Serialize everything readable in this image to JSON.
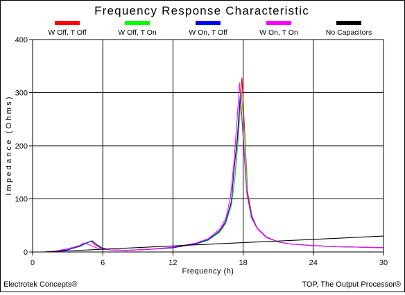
{
  "title": "Frequency Response Characteristic",
  "footer": {
    "left": "Electrotek Concepts®",
    "right": "TOP, The Output Processor®"
  },
  "chart_data": {
    "type": "line",
    "title": "Frequency Response Characteristic",
    "xlabel": "Frequency (h)",
    "ylabel": "Impedance (Ohms)",
    "xlim": [
      0,
      30
    ],
    "ylim": [
      0,
      400
    ],
    "xticks": [
      0,
      6,
      12,
      18,
      24,
      30
    ],
    "yticks": [
      0,
      100,
      200,
      300,
      400
    ],
    "grid": true,
    "legend_position": "top",
    "series": [
      {
        "name": "W Off, T Off",
        "color": "#ff0000",
        "x": [
          1,
          2,
          3,
          4,
          4.5,
          5,
          5.3,
          5.8,
          6.5,
          8,
          10,
          12,
          14,
          15,
          16,
          16.5,
          17,
          17.3,
          17.6,
          17.9,
          18.1,
          18.4,
          18.8,
          19.2,
          20,
          21,
          22,
          24,
          26,
          28,
          30
        ],
        "y": [
          0,
          1,
          4,
          10,
          16,
          20,
          14,
          8,
          4,
          3,
          5,
          8,
          15,
          22,
          38,
          55,
          90,
          140,
          235,
          328,
          240,
          110,
          65,
          45,
          28,
          19,
          15,
          12,
          10,
          9,
          8
        ]
      },
      {
        "name": "W Off, T On",
        "color": "#00ff00",
        "x": [
          1,
          2,
          3,
          4,
          4.6,
          5.1,
          5.4,
          5.9,
          6.5,
          8,
          10,
          12,
          14,
          15,
          16,
          16.5,
          17,
          17.3,
          17.6,
          17.85,
          18.1,
          18.4,
          18.8,
          19.2,
          20,
          21,
          22,
          24,
          26,
          28,
          30
        ],
        "y": [
          0,
          1,
          4,
          10,
          16,
          21,
          15,
          8,
          4,
          3,
          5,
          8,
          15,
          22,
          37,
          53,
          88,
          138,
          220,
          300,
          225,
          105,
          63,
          44,
          28,
          19,
          15,
          12,
          10,
          9,
          8
        ]
      },
      {
        "name": "W On, T Off",
        "color": "#0000ff",
        "x": [
          1,
          2,
          3,
          4,
          4.6,
          5.1,
          5.4,
          5.9,
          6.5,
          8,
          10,
          12,
          14,
          15,
          16,
          16.5,
          17,
          17.2,
          17.5,
          17.75,
          18,
          18.3,
          18.7,
          19.2,
          20,
          21,
          22,
          24,
          26,
          28,
          30
        ],
        "y": [
          0,
          1,
          4,
          11,
          17,
          21,
          15,
          8,
          4,
          3,
          5,
          8,
          16,
          23,
          40,
          57,
          95,
          150,
          215,
          295,
          220,
          115,
          68,
          45,
          28,
          19,
          15,
          12,
          10,
          9,
          8
        ]
      },
      {
        "name": "W On, T On",
        "color": "#ff00ff",
        "x": [
          1,
          2,
          3,
          4,
          4.4,
          4.8,
          5.2,
          5.7,
          6.5,
          8,
          10,
          12,
          14,
          15,
          16,
          16.5,
          16.9,
          17.2,
          17.5,
          17.7,
          17.95,
          18.3,
          18.7,
          19.2,
          20,
          21,
          22,
          24,
          26,
          28,
          30
        ],
        "y": [
          0,
          2,
          6,
          12,
          17,
          14,
          10,
          6,
          4,
          3,
          5,
          9,
          17,
          25,
          43,
          62,
          100,
          165,
          255,
          318,
          230,
          112,
          65,
          44,
          27,
          19,
          15,
          12,
          10,
          9,
          8
        ]
      },
      {
        "name": "No Capacitors",
        "color": "#000000",
        "x": [
          1,
          30
        ],
        "y": [
          0,
          30
        ]
      }
    ]
  }
}
